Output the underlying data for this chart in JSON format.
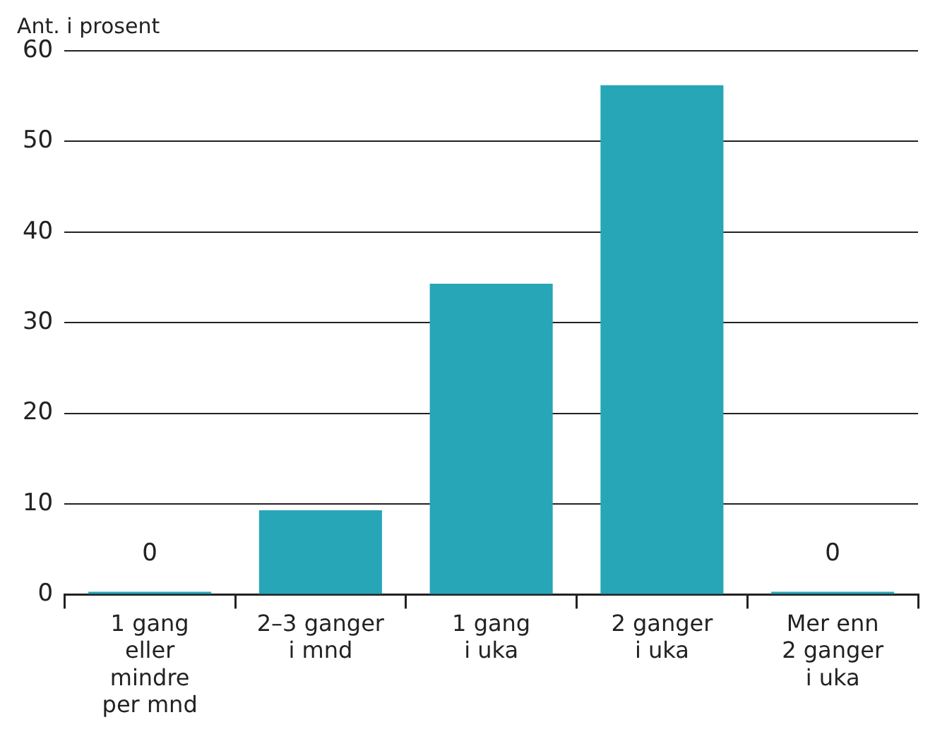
{
  "chart_data": {
    "type": "bar",
    "ylabel": "Ant. i prosent",
    "categories": [
      "1 gang eller mindre per mnd",
      "2–3 ganger i mnd",
      "1 gang i uka",
      "2 ganger i uka",
      "Mer enn 2 ganger i uka"
    ],
    "values": [
      0,
      9.3,
      34.3,
      56.2,
      0
    ],
    "value_labels": [
      "0",
      null,
      null,
      null,
      "0"
    ],
    "color": "#27a6b7",
    "ylim": [
      0,
      60
    ],
    "yticks": [
      0,
      10,
      20,
      30,
      40,
      50,
      60
    ],
    "grid": "y",
    "legend": false
  }
}
